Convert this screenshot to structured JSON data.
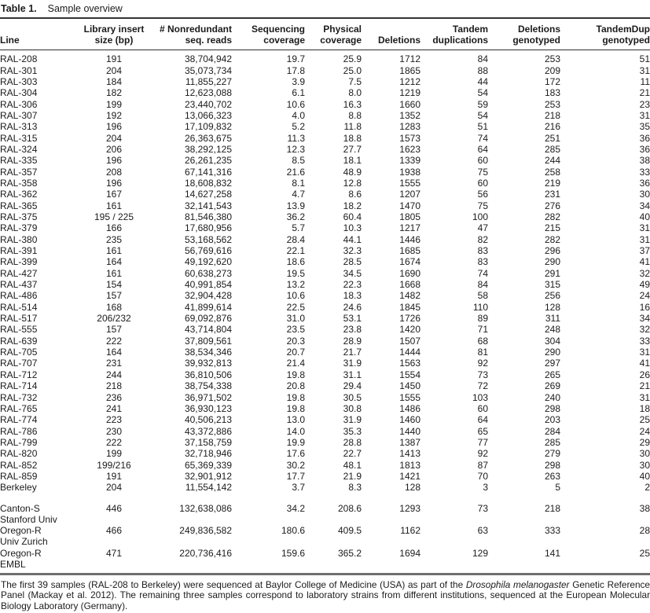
{
  "table": {
    "label": "Table 1.",
    "caption": "Sample overview",
    "columns": [
      "Line",
      "Library insert size (bp)",
      "# Nonredundant seq. reads",
      "Sequencing coverage",
      "Physical coverage",
      "Deletions",
      "Tandem duplications",
      "Deletions genotyped",
      "TandemDup genotyped"
    ],
    "rows": [
      [
        "RAL-208",
        "191",
        "38,704,942",
        "19.7",
        "25.9",
        "1712",
        "84",
        "253",
        "51"
      ],
      [
        "RAL-301",
        "204",
        "35,073,734",
        "17.8",
        "25.0",
        "1865",
        "88",
        "209",
        "31"
      ],
      [
        "RAL-303",
        "184",
        "11,855,227",
        "3.9",
        "7.5",
        "1212",
        "44",
        "172",
        "11"
      ],
      [
        "RAL-304",
        "182",
        "12,623,088",
        "6.1",
        "8.0",
        "1219",
        "54",
        "183",
        "21"
      ],
      [
        "RAL-306",
        "199",
        "23,440,702",
        "10.6",
        "16.3",
        "1660",
        "59",
        "253",
        "23"
      ],
      [
        "RAL-307",
        "192",
        "13,066,323",
        "4.0",
        "8.8",
        "1352",
        "54",
        "218",
        "31"
      ],
      [
        "RAL-313",
        "196",
        "17,109,832",
        "5.2",
        "11.8",
        "1283",
        "51",
        "216",
        "35"
      ],
      [
        "RAL-315",
        "204",
        "26,363,675",
        "11.3",
        "18.8",
        "1573",
        "74",
        "251",
        "36"
      ],
      [
        "RAL-324",
        "206",
        "38,292,125",
        "12.3",
        "27.7",
        "1623",
        "64",
        "285",
        "36"
      ],
      [
        "RAL-335",
        "196",
        "26,261,235",
        "8.5",
        "18.1",
        "1339",
        "60",
        "244",
        "38"
      ],
      [
        "RAL-357",
        "208",
        "67,141,316",
        "21.6",
        "48.9",
        "1938",
        "75",
        "258",
        "33"
      ],
      [
        "RAL-358",
        "196",
        "18,608,832",
        "8.1",
        "12.8",
        "1555",
        "60",
        "219",
        "36"
      ],
      [
        "RAL-362",
        "167",
        "14,627,258",
        "4.7",
        "8.6",
        "1207",
        "56",
        "231",
        "30"
      ],
      [
        "RAL-365",
        "161",
        "32,141,543",
        "13.9",
        "18.2",
        "1470",
        "75",
        "276",
        "34"
      ],
      [
        "RAL-375",
        "195 / 225",
        "81,546,380",
        "36.2",
        "60.4",
        "1805",
        "100",
        "282",
        "40"
      ],
      [
        "RAL-379",
        "166",
        "17,680,956",
        "5.7",
        "10.3",
        "1217",
        "47",
        "215",
        "31"
      ],
      [
        "RAL-380",
        "235",
        "53,168,562",
        "28.4",
        "44.1",
        "1446",
        "82",
        "282",
        "31"
      ],
      [
        "RAL-391",
        "161",
        "56,769,616",
        "22.1",
        "32.3",
        "1685",
        "83",
        "296",
        "37"
      ],
      [
        "RAL-399",
        "164",
        "49,192,620",
        "18.6",
        "28.5",
        "1674",
        "83",
        "290",
        "41"
      ],
      [
        "RAL-427",
        "161",
        "60,638,273",
        "19.5",
        "34.5",
        "1690",
        "74",
        "291",
        "32"
      ],
      [
        "RAL-437",
        "154",
        "40,991,854",
        "13.2",
        "22.3",
        "1668",
        "84",
        "315",
        "49"
      ],
      [
        "RAL-486",
        "157",
        "32,904,428",
        "10.6",
        "18.3",
        "1482",
        "58",
        "256",
        "24"
      ],
      [
        "RAL-514",
        "168",
        "41,899,614",
        "22.5",
        "24.6",
        "1845",
        "110",
        "128",
        "16"
      ],
      [
        "RAL-517",
        "206/232",
        "69,092,876",
        "31.0",
        "53.1",
        "1726",
        "89",
        "311",
        "34"
      ],
      [
        "RAL-555",
        "157",
        "43,714,804",
        "23.5",
        "23.8",
        "1420",
        "71",
        "248",
        "32"
      ],
      [
        "RAL-639",
        "222",
        "37,809,561",
        "20.3",
        "28.9",
        "1507",
        "68",
        "304",
        "33"
      ],
      [
        "RAL-705",
        "164",
        "38,534,346",
        "20.7",
        "21.7",
        "1444",
        "81",
        "290",
        "31"
      ],
      [
        "RAL-707",
        "231",
        "39,932,813",
        "21.4",
        "31.9",
        "1563",
        "92",
        "297",
        "41"
      ],
      [
        "RAL-712",
        "244",
        "36,810,506",
        "19.8",
        "31.1",
        "1554",
        "73",
        "265",
        "26"
      ],
      [
        "RAL-714",
        "218",
        "38,754,338",
        "20.8",
        "29.4",
        "1450",
        "72",
        "269",
        "21"
      ],
      [
        "RAL-732",
        "236",
        "36,971,502",
        "19.8",
        "30.5",
        "1555",
        "103",
        "240",
        "31"
      ],
      [
        "RAL-765",
        "241",
        "36,930,123",
        "19.8",
        "30.8",
        "1486",
        "60",
        "298",
        "18"
      ],
      [
        "RAL-774",
        "223",
        "40,506,213",
        "13.0",
        "31.9",
        "1460",
        "64",
        "203",
        "25"
      ],
      [
        "RAL-786",
        "230",
        "43,372,886",
        "14.0",
        "35.3",
        "1440",
        "65",
        "284",
        "24"
      ],
      [
        "RAL-799",
        "222",
        "37,158,759",
        "19.9",
        "28.8",
        "1387",
        "77",
        "285",
        "29"
      ],
      [
        "RAL-820",
        "199",
        "32,718,946",
        "17.6",
        "22.7",
        "1413",
        "92",
        "279",
        "30"
      ],
      [
        "RAL-852",
        "199/216",
        "65,369,339",
        "30.2",
        "48.1",
        "1813",
        "87",
        "298",
        "30"
      ],
      [
        "RAL-859",
        "191",
        "32,901,912",
        "17.7",
        "21.9",
        "1421",
        "70",
        "263",
        "40"
      ],
      [
        "Berkeley",
        "204",
        "11,554,142",
        "3.7",
        "8.3",
        "128",
        "3",
        "5",
        "2"
      ]
    ],
    "bottom_rows": [
      {
        "name_line1": "Canton-S",
        "name_line2": "Stanford Univ",
        "values": [
          "446",
          "132,638,086",
          "34.2",
          "208.6",
          "1293",
          "73",
          "218",
          "38"
        ]
      },
      {
        "name_line1": "Oregon-R",
        "name_line2": "Univ Zurich",
        "values": [
          "466",
          "249,836,582",
          "180.6",
          "409.5",
          "1162",
          "63",
          "333",
          "28"
        ]
      },
      {
        "name_line1": "Oregon-R",
        "name_line2": "EMBL",
        "values": [
          "471",
          "220,736,416",
          "159.6",
          "365.2",
          "1694",
          "129",
          "141",
          "25"
        ]
      }
    ]
  },
  "footnote": {
    "text_before_italic": "The first 39 samples (RAL-208 to Berkeley) were sequenced at Baylor College of Medicine (USA) as part of the ",
    "italic_text": "Drosophila melanogaster",
    "text_after_italic": " Genetic Reference Panel (Mackay et al. 2012). The remaining three samples correspond to laboratory strains from different institutions, sequenced at the European Molecular Biology Laboratory (Germany)."
  }
}
